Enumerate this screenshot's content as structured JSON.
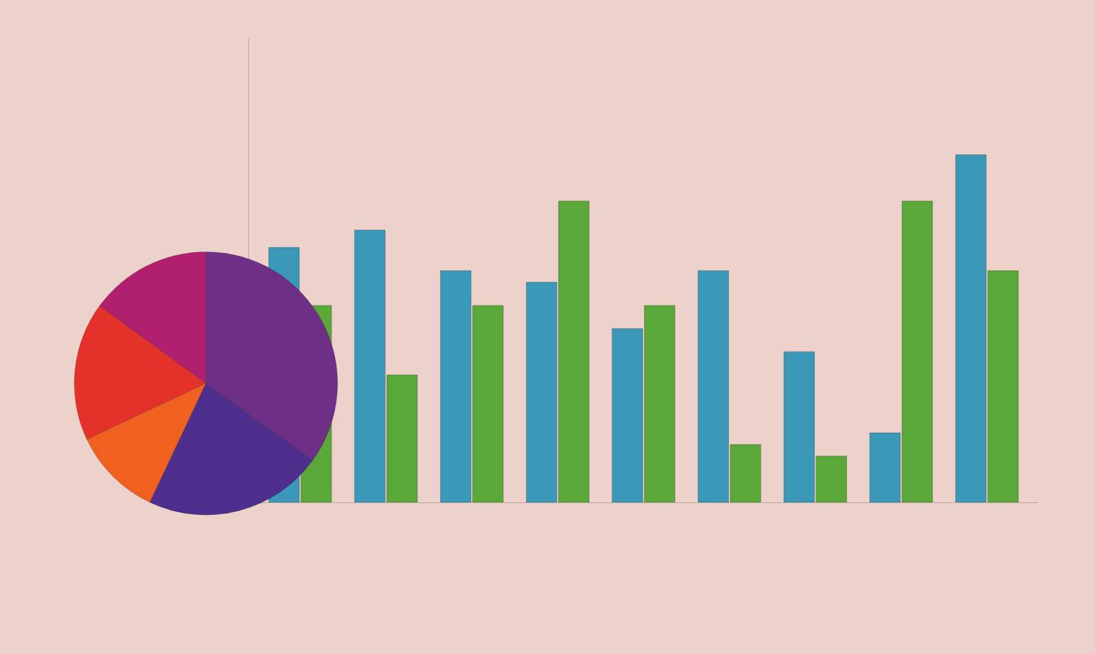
{
  "chart_data": [
    {
      "type": "bar",
      "categories": [
        null,
        null,
        null,
        null,
        null,
        null,
        null,
        null,
        null
      ],
      "series": [
        {
          "color": "#3a98b9",
          "values": [
            220,
            235,
            200,
            190,
            150,
            200,
            130,
            60,
            300
          ]
        },
        {
          "color": "#5aa83a",
          "values": [
            170,
            110,
            170,
            260,
            170,
            50,
            40,
            260,
            200
          ]
        }
      ],
      "ylim": [
        0,
        400
      ],
      "tick_labels": false,
      "grid": false
    },
    {
      "type": "pie",
      "values": [
        35,
        15,
        17,
        11,
        22
      ],
      "colors": [
        "#6e2f86",
        "#b0206e",
        "#e4322b",
        "#f0601e",
        "#4e2f8e"
      ]
    }
  ]
}
